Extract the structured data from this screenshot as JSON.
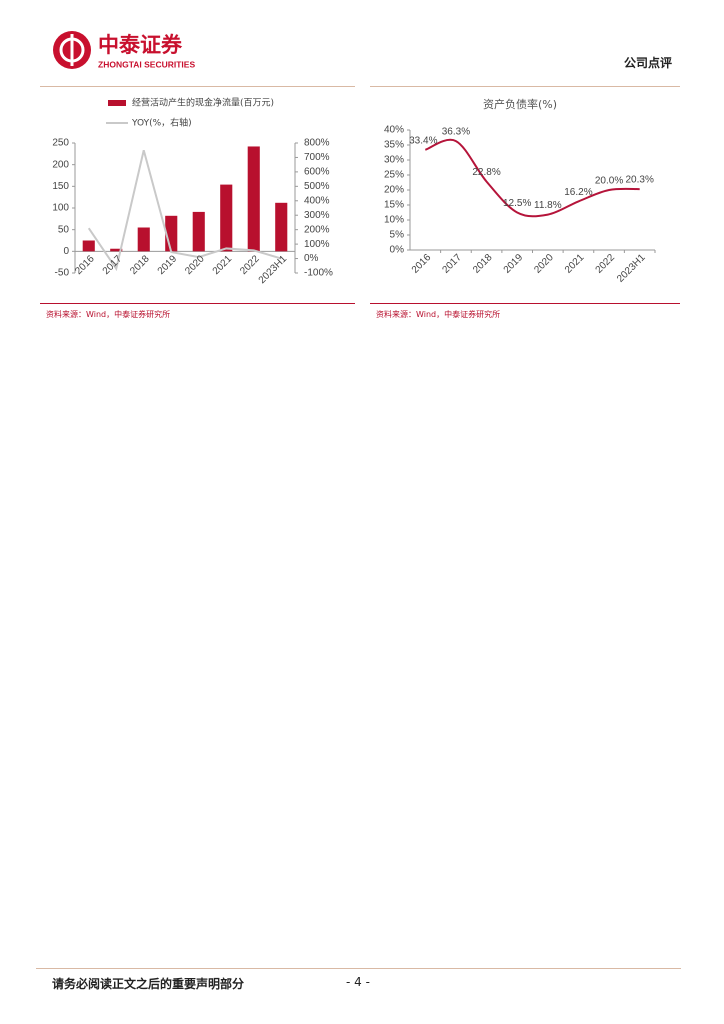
{
  "header": {
    "brand": "中泰证券",
    "brand_en": "ZHONGTAI SECURITIES",
    "section": "公司点评"
  },
  "chart_data": [
    {
      "type": "bar",
      "categories": [
        "2016",
        "2017",
        "2018",
        "2019",
        "2020",
        "2021",
        "2022",
        "2023H1"
      ],
      "series": [
        {
          "name": "经营活动产生的现金净流量(百万元)",
          "color": "#b8102e",
          "values": [
            25,
            6,
            55,
            82,
            91,
            154,
            242,
            112
          ]
        },
        {
          "name": "YOY(%，右轴)",
          "type": "line",
          "axis": "y2",
          "color": "#c9c9c9",
          "values": [
            210,
            -70,
            750,
            45,
            10,
            70,
            57,
            0
          ]
        }
      ],
      "ylim": [
        -50,
        250
      ],
      "yticks": [
        -50,
        0,
        50,
        100,
        150,
        200,
        250
      ],
      "y2lim": [
        -100,
        800
      ],
      "y2ticks": [
        {
          "value": -100,
          "label": "-100%"
        },
        {
          "value": 0,
          "label": "0%"
        },
        {
          "value": 100,
          "label": "100%"
        },
        {
          "value": 200,
          "label": "200%"
        },
        {
          "value": 300,
          "label": "300%"
        },
        {
          "value": 400,
          "label": "400%"
        },
        {
          "value": 500,
          "label": "500%"
        },
        {
          "value": 600,
          "label": "600%"
        },
        {
          "value": 700,
          "label": "700%"
        },
        {
          "value": 800,
          "label": "800%"
        }
      ]
    },
    {
      "type": "line",
      "title": "资产负债率(%)",
      "categories": [
        "2016",
        "2017",
        "2018",
        "2019",
        "2020",
        "2021",
        "2022",
        "2023H1"
      ],
      "values": [
        33.4,
        36.3,
        22.8,
        12.5,
        11.8,
        16.2,
        20.0,
        20.3
      ],
      "value_labels": [
        "33.4%",
        "36.3%",
        "22.8%",
        "12.5%",
        "11.8%",
        "16.2%",
        "20.0%",
        "20.3%"
      ],
      "color": "#b5143a",
      "ylim": [
        0,
        40
      ],
      "yticks": [
        {
          "value": 0,
          "label": "0%"
        },
        {
          "value": 5,
          "label": "5%"
        },
        {
          "value": 10,
          "label": "10%"
        },
        {
          "value": 15,
          "label": "15%"
        },
        {
          "value": 20,
          "label": "20%"
        },
        {
          "value": 25,
          "label": "25%"
        },
        {
          "value": 30,
          "label": "30%"
        },
        {
          "value": 35,
          "label": "35%"
        },
        {
          "value": 40,
          "label": "40%"
        }
      ]
    }
  ],
  "sources": [
    "资料来源：Wind，中泰证券研究所",
    "资料来源：Wind，中泰证券研究所"
  ],
  "footer": {
    "disclaimer": "请务必阅读正文之后的重要声明部分",
    "page": "- 4 -"
  }
}
